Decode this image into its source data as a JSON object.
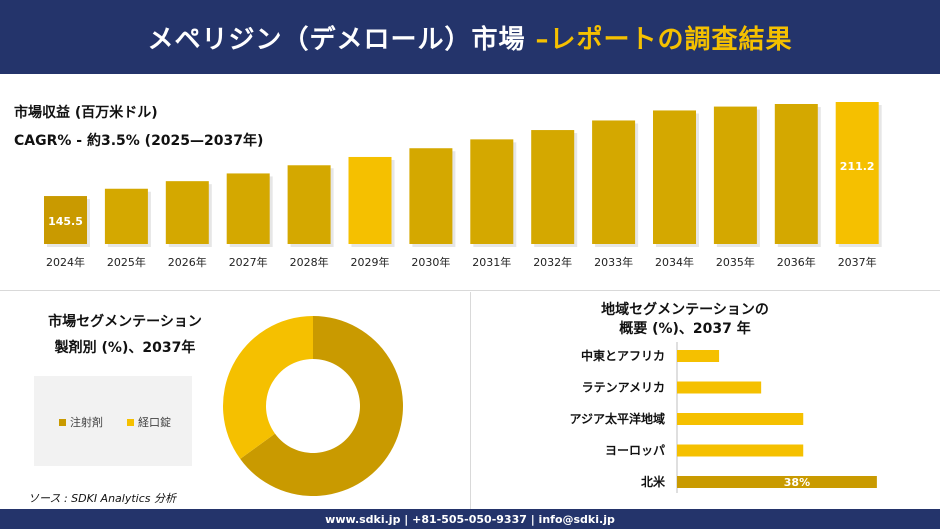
{
  "header": {
    "title_main": "メペリジン（デメロール）市場 ",
    "title_accent": "–レポートの調査結果"
  },
  "revenue_label": "市場収益 (百万米ドル)",
  "cagr_label": "CAGR% - 約3.5% (2025—2037年)",
  "segment_title_line1": "市場セグメンテーション",
  "segment_title_line2": "製剤別 (%)、2037年",
  "region_title_line1": "地域セグメンテーションの",
  "region_title_line2": "概要 (%)、2037 年",
  "source": "ソース : SDKI Analytics 分析",
  "footer": "www.sdki.jp | +81-505-050-9337 | info@sdki.jp",
  "colors": {
    "navy": "#24346b",
    "gold": "#f5c000",
    "dark_gold": "#c99a00",
    "mid_gold": "#d4a800"
  },
  "chart_data": [
    {
      "type": "bar",
      "categories": [
        "2024年",
        "2025年",
        "2026年",
        "2027年",
        "2028年",
        "2029年",
        "2030年",
        "2031年",
        "2032年",
        "2033年",
        "2034年",
        "2035年",
        "2036年",
        "2037年"
      ],
      "values": [
        145.5,
        150.6,
        155.9,
        161.3,
        167.0,
        172.8,
        178.9,
        185.1,
        191.6,
        198.3,
        205.3,
        208.0,
        209.8,
        211.2
      ],
      "data_labels": {
        "0": "145.5",
        "13": "211.2"
      }
    },
    {
      "type": "pie",
      "labels": [
        "注射剤",
        "経口錠"
      ],
      "values": [
        65,
        35
      ],
      "colors": [
        "#c99a00",
        "#f5c000"
      ]
    },
    {
      "type": "bar",
      "orientation": "horizontal",
      "categories": [
        "中東とアフリカ",
        "ラテンアメリカ",
        "アジア太平洋地域",
        "ヨーロッパ",
        "北米"
      ],
      "values": [
        8,
        16,
        24,
        24,
        38
      ],
      "data_labels": {
        "4": "38%"
      }
    }
  ]
}
